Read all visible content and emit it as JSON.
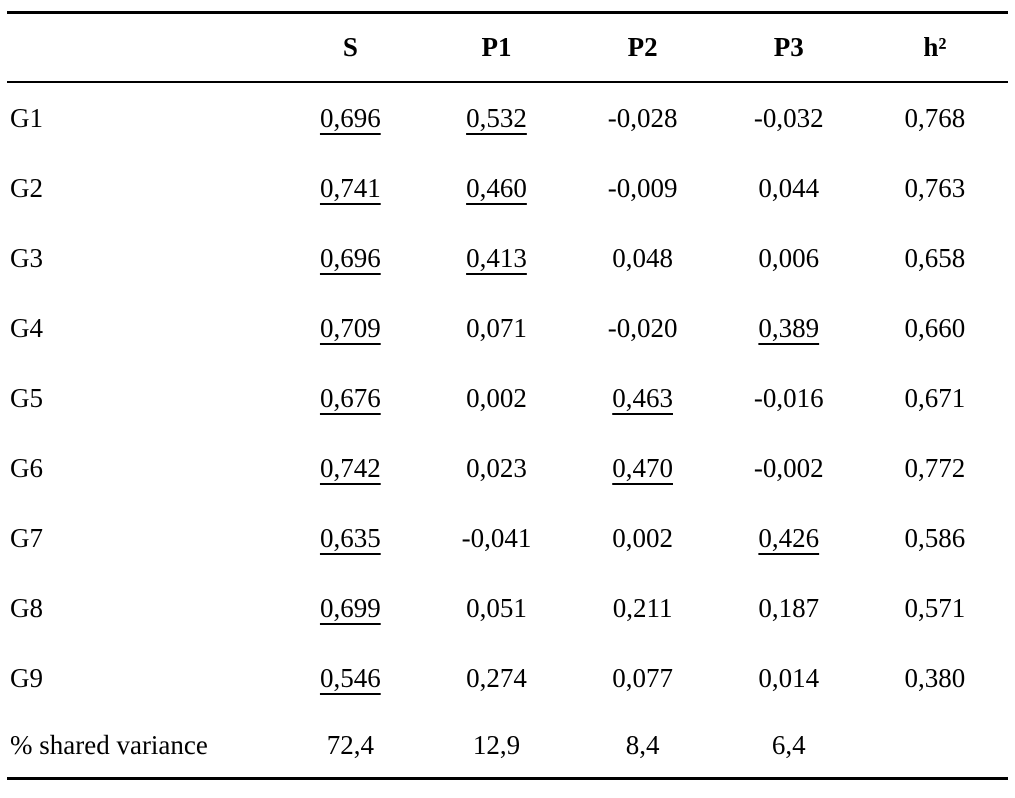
{
  "table": {
    "description": "Factor loadings table with salient (underlined) loadings, communalities and percent shared variance",
    "columns": [
      "",
      "S",
      "P1",
      "P2",
      "P3",
      "h²"
    ],
    "rows": [
      {
        "label": "G1",
        "cells": [
          {
            "v": "0,696",
            "u": true
          },
          {
            "v": "0,532",
            "u": true
          },
          {
            "v": "-0,028",
            "u": false
          },
          {
            "v": "-0,032",
            "u": false
          },
          {
            "v": "0,768",
            "u": false
          }
        ]
      },
      {
        "label": "G2",
        "cells": [
          {
            "v": "0,741",
            "u": true
          },
          {
            "v": "0,460",
            "u": true
          },
          {
            "v": "-0,009",
            "u": false
          },
          {
            "v": "0,044",
            "u": false
          },
          {
            "v": "0,763",
            "u": false
          }
        ]
      },
      {
        "label": "G3",
        "cells": [
          {
            "v": "0,696",
            "u": true
          },
          {
            "v": "0,413",
            "u": true
          },
          {
            "v": "0,048",
            "u": false
          },
          {
            "v": "0,006",
            "u": false
          },
          {
            "v": "0,658",
            "u": false
          }
        ]
      },
      {
        "label": "G4",
        "cells": [
          {
            "v": "0,709",
            "u": true
          },
          {
            "v": "0,071",
            "u": false
          },
          {
            "v": "-0,020",
            "u": false
          },
          {
            "v": "0,389",
            "u": true
          },
          {
            "v": "0,660",
            "u": false
          }
        ]
      },
      {
        "label": "G5",
        "cells": [
          {
            "v": "0,676",
            "u": true
          },
          {
            "v": "0,002",
            "u": false
          },
          {
            "v": "0,463",
            "u": true
          },
          {
            "v": "-0,016",
            "u": false
          },
          {
            "v": "0,671",
            "u": false
          }
        ]
      },
      {
        "label": "G6",
        "cells": [
          {
            "v": "0,742",
            "u": true
          },
          {
            "v": "0,023",
            "u": false
          },
          {
            "v": "0,470",
            "u": true
          },
          {
            "v": "-0,002",
            "u": false
          },
          {
            "v": "0,772",
            "u": false
          }
        ]
      },
      {
        "label": "G7",
        "cells": [
          {
            "v": "0,635",
            "u": true
          },
          {
            "v": "-0,041",
            "u": false
          },
          {
            "v": "0,002",
            "u": false
          },
          {
            "v": "0,426",
            "u": true
          },
          {
            "v": "0,586",
            "u": false
          }
        ]
      },
      {
        "label": "G8",
        "cells": [
          {
            "v": "0,699",
            "u": true
          },
          {
            "v": "0,051",
            "u": false
          },
          {
            "v": "0,211",
            "u": false
          },
          {
            "v": "0,187",
            "u": false
          },
          {
            "v": "0,571",
            "u": false
          }
        ]
      },
      {
        "label": "G9",
        "cells": [
          {
            "v": "0,546",
            "u": true
          },
          {
            "v": "0,274",
            "u": false
          },
          {
            "v": "0,077",
            "u": false
          },
          {
            "v": "0,014",
            "u": false
          },
          {
            "v": "0,380",
            "u": false
          }
        ]
      },
      {
        "label": "% shared variance",
        "cells": [
          {
            "v": "72,4",
            "u": false
          },
          {
            "v": "12,9",
            "u": false
          },
          {
            "v": "8,4",
            "u": false
          },
          {
            "v": "6,4",
            "u": false
          },
          {
            "v": "",
            "u": false
          }
        ]
      }
    ],
    "colors": {
      "text": "#000000",
      "rule": "#000000",
      "background": "#ffffff"
    }
  }
}
